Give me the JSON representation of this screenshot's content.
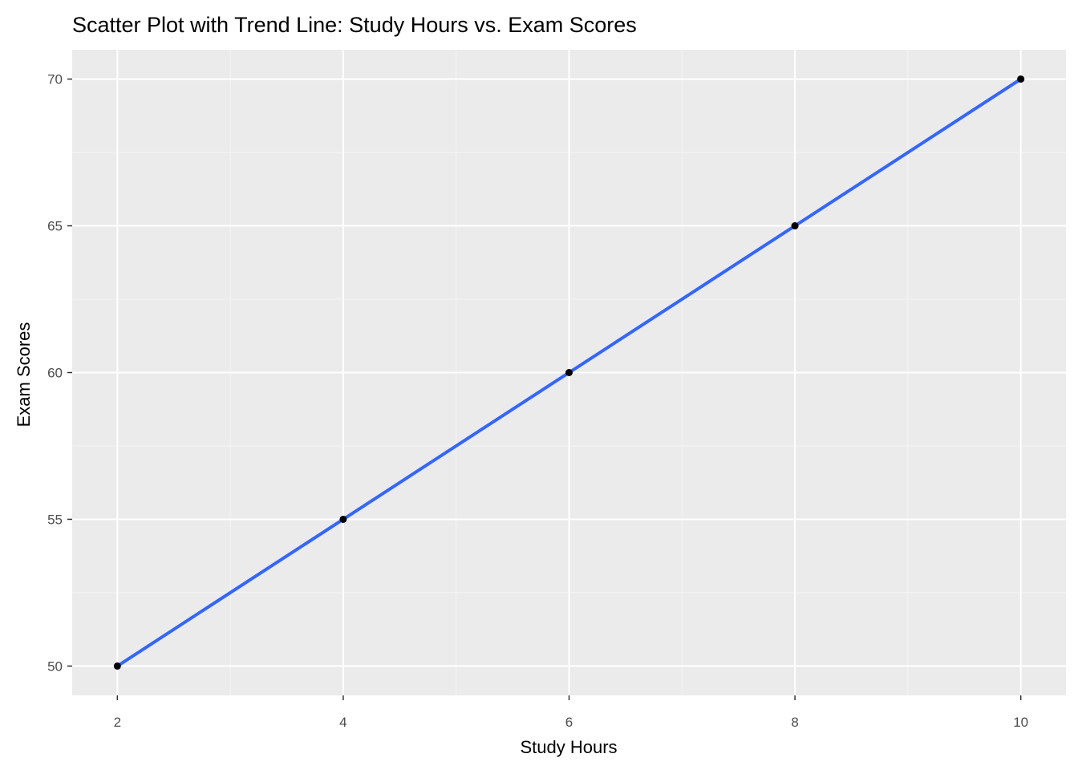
{
  "chart_data": {
    "type": "scatter",
    "title": "Scatter Plot with Trend Line: Study Hours vs. Exam Scores",
    "xlabel": "Study Hours",
    "ylabel": "Exam Scores",
    "x": [
      2,
      4,
      6,
      8,
      10
    ],
    "y": [
      50,
      55,
      60,
      65,
      70
    ],
    "trend_line": {
      "method": "linear",
      "x": [
        2,
        10
      ],
      "y": [
        50,
        70
      ]
    },
    "xlim": [
      1.6,
      10.4
    ],
    "ylim": [
      49,
      71
    ],
    "x_ticks": [
      2,
      4,
      6,
      8,
      10
    ],
    "x_tick_labels": [
      "2",
      "4",
      "6",
      "8",
      "10"
    ],
    "y_ticks": [
      50,
      55,
      60,
      65,
      70
    ],
    "y_tick_labels": [
      "50",
      "55",
      "60",
      "65",
      "70"
    ],
    "x_minor_ticks": [
      3,
      5,
      7,
      9
    ],
    "y_minor_ticks": [
      52.5,
      57.5,
      62.5,
      67.5
    ],
    "grid": true,
    "legend": "none",
    "colors": {
      "panel_background": "#ebebeb",
      "grid_major": "#ffffff",
      "grid_minor": "#f5f5f5",
      "trend_line": "#3366ff",
      "points": "#000000"
    }
  }
}
